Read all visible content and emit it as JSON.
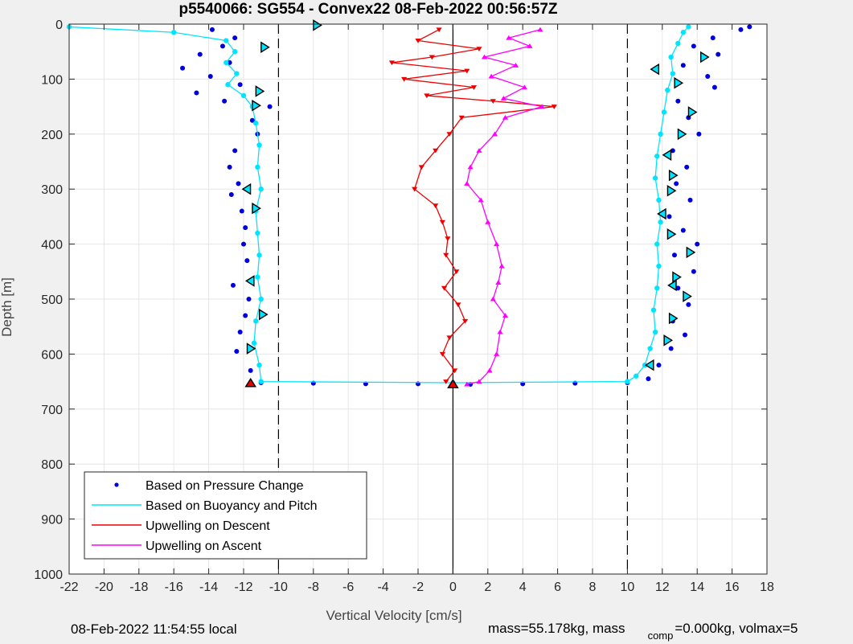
{
  "chart_data": {
    "type": "scatter",
    "title": "p5540066: SG554 - Convex22 08-Feb-2022 00:56:57Z",
    "xlabel": "Vertical Velocity [cm/s]",
    "ylabel": "Depth [m]",
    "xlim": [
      -22,
      18
    ],
    "ylim": [
      1000,
      0
    ],
    "x_ticks": [
      "-22",
      "-20",
      "-18",
      "-16",
      "-14",
      "-12",
      "-10",
      "-8",
      "-6",
      "-4",
      "-2",
      "0",
      "2",
      "4",
      "6",
      "8",
      "10",
      "12",
      "14",
      "16",
      "18"
    ],
    "y_ticks": [
      "0",
      "100",
      "200",
      "300",
      "400",
      "500",
      "600",
      "700",
      "800",
      "900",
      "1000"
    ],
    "grid": true,
    "legend_position": "bottom-left",
    "reference_lines": [
      {
        "style": "dashed",
        "x": -10
      },
      {
        "style": "dashed",
        "x": 10
      },
      {
        "style": "solid",
        "x": 0
      }
    ],
    "series": [
      {
        "name": "Based on Pressure Change",
        "color": "#0000dd",
        "marker": "dot",
        "points": [
          [
            -13.8,
            10
          ],
          [
            -12.5,
            25
          ],
          [
            -13.2,
            40
          ],
          [
            -14.5,
            55
          ],
          [
            -12.8,
            70
          ],
          [
            -15.5,
            80
          ],
          [
            -13.9,
            95
          ],
          [
            -12.2,
            110
          ],
          [
            -14.7,
            125
          ],
          [
            -13.1,
            140
          ],
          [
            -10.5,
            150
          ],
          [
            -11.5,
            175
          ],
          [
            -11.2,
            200
          ],
          [
            -12.5,
            230
          ],
          [
            -12.8,
            260
          ],
          [
            -12.3,
            290
          ],
          [
            -12.7,
            310
          ],
          [
            -12.1,
            340
          ],
          [
            -11.9,
            370
          ],
          [
            -12.0,
            400
          ],
          [
            -11.8,
            430
          ],
          [
            -12.6,
            475
          ],
          [
            -11.7,
            500
          ],
          [
            -11.9,
            530
          ],
          [
            -12.2,
            560
          ],
          [
            -12.4,
            595
          ],
          [
            -11.6,
            630
          ],
          [
            -11.0,
            652
          ],
          [
            -8.0,
            653
          ],
          [
            -5.0,
            654
          ],
          [
            -2.0,
            654
          ],
          [
            1.0,
            655
          ],
          [
            4.0,
            654
          ],
          [
            7.0,
            653
          ],
          [
            10.0,
            652
          ],
          [
            11.2,
            645
          ],
          [
            11.8,
            620
          ],
          [
            12.5,
            590
          ],
          [
            13.3,
            565
          ],
          [
            12.6,
            540
          ],
          [
            13.5,
            510
          ],
          [
            12.9,
            480
          ],
          [
            13.8,
            450
          ],
          [
            12.7,
            420
          ],
          [
            14.0,
            400
          ],
          [
            13.2,
            375
          ],
          [
            12.4,
            350
          ],
          [
            13.6,
            320
          ],
          [
            12.8,
            290
          ],
          [
            13.4,
            260
          ],
          [
            12.6,
            230
          ],
          [
            14.1,
            200
          ],
          [
            13.5,
            170
          ],
          [
            12.9,
            140
          ],
          [
            15.0,
            115
          ],
          [
            14.6,
            95
          ],
          [
            13.2,
            75
          ],
          [
            15.2,
            55
          ],
          [
            13.8,
            40
          ],
          [
            14.9,
            25
          ],
          [
            16.5,
            10
          ],
          [
            17.0,
            5
          ]
        ]
      },
      {
        "name": "Based on Buoyancy and Pitch",
        "color": "#00e5ff",
        "marker": "line",
        "points": [
          [
            -22,
            5
          ],
          [
            -16,
            15
          ],
          [
            -13,
            30
          ],
          [
            -12.5,
            50
          ],
          [
            -13.0,
            70
          ],
          [
            -12.4,
            90
          ],
          [
            -12.9,
            110
          ],
          [
            -12.0,
            130
          ],
          [
            -11.5,
            150
          ],
          [
            -11.3,
            180
          ],
          [
            -11.1,
            220
          ],
          [
            -11.2,
            260
          ],
          [
            -11.0,
            300
          ],
          [
            -11.3,
            340
          ],
          [
            -11.2,
            380
          ],
          [
            -11.1,
            420
          ],
          [
            -11.2,
            460
          ],
          [
            -11.0,
            500
          ],
          [
            -11.3,
            540
          ],
          [
            -11.4,
            580
          ],
          [
            -11.1,
            620
          ],
          [
            -11.0,
            650
          ],
          [
            0.0,
            652
          ],
          [
            10.0,
            650
          ],
          [
            10.5,
            640
          ],
          [
            11.0,
            620
          ],
          [
            11.3,
            590
          ],
          [
            11.6,
            560
          ],
          [
            11.5,
            520
          ],
          [
            11.7,
            480
          ],
          [
            11.8,
            440
          ],
          [
            11.7,
            400
          ],
          [
            11.9,
            360
          ],
          [
            11.8,
            320
          ],
          [
            11.6,
            280
          ],
          [
            11.7,
            240
          ],
          [
            11.9,
            200
          ],
          [
            12.1,
            160
          ],
          [
            12.3,
            120
          ],
          [
            12.6,
            90
          ],
          [
            12.5,
            60
          ],
          [
            12.9,
            35
          ],
          [
            13.2,
            15
          ],
          [
            13.5,
            5
          ]
        ]
      },
      {
        "name": "Upwelling on Descent",
        "color": "#ee0000",
        "marker": "triangle-down",
        "points": [
          [
            -0.8,
            10
          ],
          [
            -2.0,
            30
          ],
          [
            1.5,
            45
          ],
          [
            -1.2,
            60
          ],
          [
            -3.5,
            70
          ],
          [
            0.8,
            85
          ],
          [
            -2.8,
            100
          ],
          [
            1.2,
            115
          ],
          [
            -1.5,
            130
          ],
          [
            2.3,
            140
          ],
          [
            5.8,
            150
          ],
          [
            0.5,
            170
          ],
          [
            -0.2,
            200
          ],
          [
            -1.0,
            230
          ],
          [
            -1.8,
            260
          ],
          [
            -2.2,
            300
          ],
          [
            -1.0,
            330
          ],
          [
            -0.6,
            360
          ],
          [
            -0.3,
            390
          ],
          [
            -0.4,
            420
          ],
          [
            0.2,
            450
          ],
          [
            -0.5,
            480
          ],
          [
            0.3,
            510
          ],
          [
            0.7,
            540
          ],
          [
            -0.2,
            570
          ],
          [
            -0.6,
            600
          ],
          [
            0.1,
            630
          ],
          [
            -0.4,
            650
          ]
        ]
      },
      {
        "name": "Upwelling on Ascent",
        "color": "#ff00ff",
        "marker": "triangle-up",
        "points": [
          [
            5.0,
            10
          ],
          [
            3.2,
            25
          ],
          [
            4.4,
            40
          ],
          [
            1.8,
            60
          ],
          [
            3.6,
            75
          ],
          [
            2.2,
            95
          ],
          [
            4.1,
            115
          ],
          [
            2.9,
            135
          ],
          [
            5.1,
            150
          ],
          [
            3.0,
            170
          ],
          [
            2.4,
            200
          ],
          [
            1.5,
            230
          ],
          [
            1.0,
            260
          ],
          [
            0.8,
            290
          ],
          [
            1.6,
            320
          ],
          [
            2.0,
            360
          ],
          [
            2.5,
            400
          ],
          [
            2.8,
            440
          ],
          [
            2.6,
            470
          ],
          [
            2.3,
            500
          ],
          [
            3.0,
            530
          ],
          [
            2.7,
            560
          ],
          [
            2.5,
            600
          ],
          [
            2.1,
            630
          ],
          [
            1.5,
            650
          ],
          [
            0.8,
            655
          ]
        ]
      }
    ],
    "annotation_markers": [
      {
        "shape": "triangle-right",
        "color": "#00e5ff",
        "x": -7.8,
        "y": 2
      },
      {
        "shape": "triangle-right",
        "color": "#00e5ff",
        "x": -10.8,
        "y": 42
      },
      {
        "shape": "triangle-right",
        "color": "#00e5ff",
        "x": -11.1,
        "y": 122
      },
      {
        "shape": "triangle-right",
        "color": "#00e5ff",
        "x": -11.3,
        "y": 148
      },
      {
        "shape": "triangle-left",
        "color": "#00e5ff",
        "x": -11.8,
        "y": 300
      },
      {
        "shape": "triangle-right",
        "color": "#00e5ff",
        "x": -11.3,
        "y": 335
      },
      {
        "shape": "triangle-left",
        "color": "#00e5ff",
        "x": -11.6,
        "y": 467
      },
      {
        "shape": "triangle-right",
        "color": "#00e5ff",
        "x": -10.9,
        "y": 528
      },
      {
        "shape": "triangle-right",
        "color": "#00e5ff",
        "x": -11.6,
        "y": 590
      },
      {
        "shape": "triangle-up",
        "color": "#ee0000",
        "x": -11.6,
        "y": 653
      },
      {
        "shape": "triangle-up",
        "color": "#ee0000",
        "x": 0.0,
        "y": 655
      },
      {
        "shape": "triangle-left",
        "color": "#00e5ff",
        "x": 11.3,
        "y": 620
      },
      {
        "shape": "triangle-right",
        "color": "#00e5ff",
        "x": 12.3,
        "y": 575
      },
      {
        "shape": "triangle-right",
        "color": "#00e5ff",
        "x": 12.6,
        "y": 535
      },
      {
        "shape": "triangle-right",
        "color": "#00e5ff",
        "x": 13.4,
        "y": 495
      },
      {
        "shape": "triangle-left",
        "color": "#00e5ff",
        "x": 12.6,
        "y": 475
      },
      {
        "shape": "triangle-right",
        "color": "#00e5ff",
        "x": 12.8,
        "y": 460
      },
      {
        "shape": "triangle-right",
        "color": "#00e5ff",
        "x": 13.6,
        "y": 415
      },
      {
        "shape": "triangle-right",
        "color": "#00e5ff",
        "x": 12.5,
        "y": 382
      },
      {
        "shape": "triangle-left",
        "color": "#00e5ff",
        "x": 12.0,
        "y": 345
      },
      {
        "shape": "triangle-right",
        "color": "#00e5ff",
        "x": 12.5,
        "y": 303
      },
      {
        "shape": "triangle-right",
        "color": "#00e5ff",
        "x": 12.6,
        "y": 275
      },
      {
        "shape": "triangle-left",
        "color": "#00e5ff",
        "x": 12.3,
        "y": 238
      },
      {
        "shape": "triangle-right",
        "color": "#00e5ff",
        "x": 13.1,
        "y": 200
      },
      {
        "shape": "triangle-right",
        "color": "#00e5ff",
        "x": 13.7,
        "y": 160
      },
      {
        "shape": "triangle-right",
        "color": "#00e5ff",
        "x": 12.9,
        "y": 107
      },
      {
        "shape": "triangle-left",
        "color": "#00e5ff",
        "x": 11.6,
        "y": 82
      },
      {
        "shape": "triangle-right",
        "color": "#00e5ff",
        "x": 14.4,
        "y": 60
      }
    ]
  },
  "footer": {
    "local_time": "08-Feb-2022 11:54:55 local",
    "mass_label": "mass=55.178kg, mass",
    "mass_comp_sub": "comp",
    "mass_comp_value": "=0.000kg, volmax=5"
  }
}
